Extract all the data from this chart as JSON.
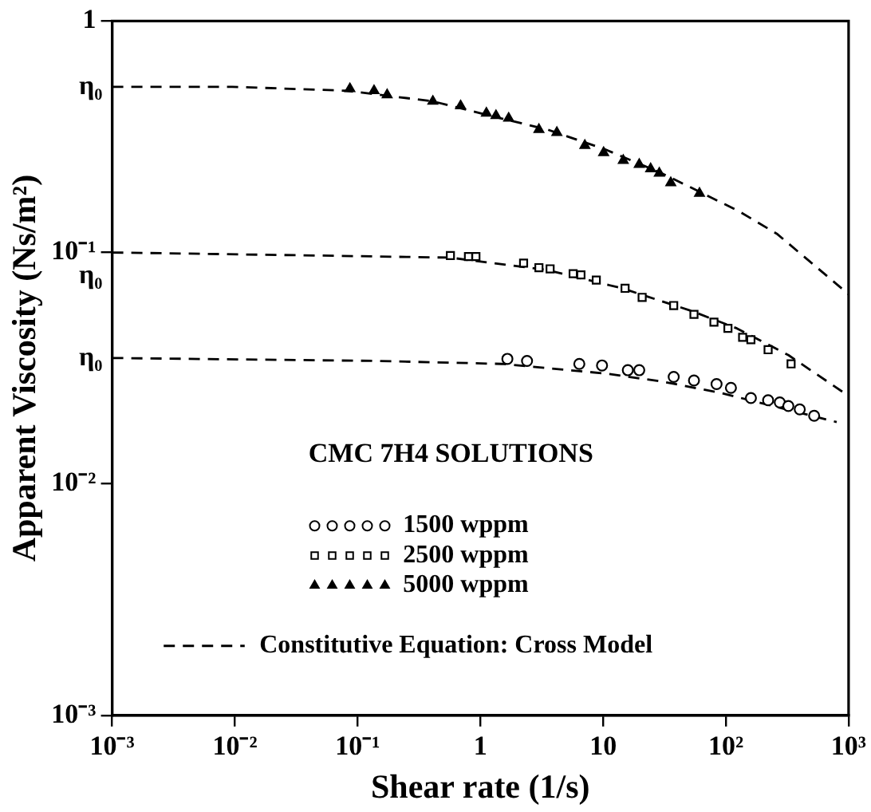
{
  "chart_data": {
    "type": "scatter",
    "xlabel": "Shear rate (1/s)",
    "ylabel": "Apparent Viscosity (Ns/m²)",
    "legend_title": "CMC 7H4 SOLUTIONS",
    "legend": "bottom",
    "log": "xy",
    "grid": false,
    "xlim": [
      0.001,
      1000
    ],
    "ylim": [
      0.001,
      1
    ],
    "xticks": [
      {
        "value": 0.001,
        "label": "10⁻³"
      },
      {
        "value": 0.01,
        "label": "10⁻²"
      },
      {
        "value": 0.1,
        "label": "10⁻¹"
      },
      1,
      10,
      {
        "value": 100,
        "label": "10²"
      },
      {
        "value": 1000,
        "label": "10³"
      }
    ],
    "yticks": [
      {
        "value": 0.001,
        "label": "10⁻³"
      },
      {
        "value": 0.01,
        "label": "10⁻²"
      },
      {
        "value": 0.1,
        "label": "10⁻¹"
      },
      1
    ],
    "annotations": [
      "η₀",
      "η₀",
      "η₀"
    ],
    "series": [
      {
        "name": "1500 wppm",
        "marker": "circle",
        "color": "#000000",
        "x": [
          1.66,
          2.4,
          6.4,
          9.8,
          15.9,
          19.7,
          37.6,
          55,
          84,
          110,
          160,
          221,
          275,
          323,
          400,
          524
        ],
        "values": [
          0.0347,
          0.034,
          0.033,
          0.0325,
          0.031,
          0.031,
          0.029,
          0.028,
          0.027,
          0.026,
          0.0235,
          0.023,
          0.0225,
          0.0217,
          0.021,
          0.0197
        ]
      },
      {
        "name": "2500 wppm",
        "marker": "square",
        "color": "#000000",
        "x": [
          0.57,
          0.8,
          0.92,
          2.25,
          3.0,
          3.7,
          5.7,
          6.6,
          8.8,
          15.1,
          20.8,
          37.6,
          55,
          80,
          104,
          137,
          160,
          221,
          340
        ],
        "values": [
          0.097,
          0.096,
          0.096,
          0.09,
          0.086,
          0.085,
          0.081,
          0.08,
          0.076,
          0.07,
          0.064,
          0.059,
          0.054,
          0.05,
          0.047,
          0.043,
          0.042,
          0.038,
          0.033
        ]
      },
      {
        "name": "5000 wppm",
        "marker": "triangle",
        "color": "#000000",
        "x": [
          0.0865,
          0.136,
          0.174,
          0.41,
          0.69,
          1.12,
          1.34,
          1.7,
          3.0,
          4.2,
          7.1,
          10.1,
          14.6,
          19.7,
          24.4,
          28.7,
          35.6,
          61
        ],
        "values": [
          0.51,
          0.5,
          0.48,
          0.45,
          0.43,
          0.4,
          0.39,
          0.38,
          0.34,
          0.33,
          0.29,
          0.27,
          0.25,
          0.24,
          0.23,
          0.22,
          0.2,
          0.18
        ]
      },
      {
        "name": "Constitutive Equation: Cross Model",
        "type": "line",
        "line_style": "dashed",
        "color": "#000000",
        "x": [
          0.001,
          0.0095,
          0.081,
          0.41,
          1.2,
          3.5,
          10.2,
          30,
          65,
          130,
          263,
          1000
        ],
        "values": [
          0.52,
          0.52,
          0.5,
          0.45,
          0.39,
          0.34,
          0.28,
          0.22,
          0.18,
          0.15,
          0.12,
          0.066
        ]
      },
      {
        "type": "line",
        "line_style": "dashed",
        "color": "#000000",
        "x": [
          0.001,
          0.048,
          0.57,
          3.5,
          14.3,
          52,
          123,
          324,
          1000
        ],
        "values": [
          0.1,
          0.097,
          0.095,
          0.084,
          0.07,
          0.056,
          0.047,
          0.036,
          0.024
        ]
      },
      {
        "type": "line",
        "line_style": "dashed",
        "color": "#000000",
        "x": [
          0.001,
          0.14,
          1.5,
          10.4,
          30,
          89,
          800
        ],
        "values": [
          0.035,
          0.034,
          0.033,
          0.03,
          0.0277,
          0.0248,
          0.0185
        ]
      }
    ]
  }
}
